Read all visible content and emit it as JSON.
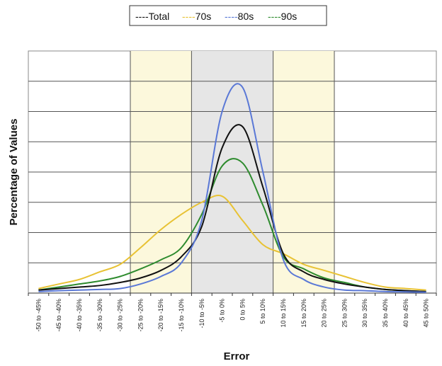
{
  "chart_data": {
    "type": "line",
    "title": "",
    "xlabel": "Error",
    "ylabel": "Percentage of Values",
    "categories": [
      "-50 to -45%",
      "-45 to -40%",
      "-40 to -35%",
      "-35 to -30%",
      "-30 to -25%",
      "-25 to -20%",
      "-20 to -15%",
      "-15 to -10%",
      "-10 to -5%",
      "-5 to 0%",
      "0 to 5%",
      "5 to 10%",
      "10 to 15%",
      "15 to 20%",
      "20 to 25%",
      "25 to 30%",
      "30 to 35%",
      "35 to 40%",
      "40 to 45%",
      "45 to 50%"
    ],
    "ylim": [
      0,
      8
    ],
    "y_gridlines": 8,
    "y_tick_labels_shown": false,
    "grid": true,
    "legend_position": "top",
    "shaded_bands": [
      {
        "from_category": "-25 to -20%",
        "to_category": "-15 to -10%",
        "color": "#fcf8dc"
      },
      {
        "from_category": "-10 to -5%",
        "to_category": "5 to 10%",
        "color": "#e6e6e6"
      },
      {
        "from_category": "10 to 15%",
        "to_category": "20 to 25%",
        "color": "#fcf8dc"
      }
    ],
    "series": [
      {
        "name": "Total",
        "color": "#111111",
        "values": [
          0.1,
          0.15,
          0.2,
          0.25,
          0.35,
          0.5,
          0.75,
          1.2,
          2.2,
          4.8,
          5.5,
          3.5,
          1.3,
          0.7,
          0.45,
          0.3,
          0.2,
          0.12,
          0.08,
          0.05
        ]
      },
      {
        "name": "70s",
        "color": "#e8c234",
        "values": [
          0.15,
          0.3,
          0.45,
          0.7,
          0.95,
          1.5,
          2.1,
          2.6,
          3.0,
          3.2,
          2.4,
          1.6,
          1.3,
          0.95,
          0.75,
          0.55,
          0.35,
          0.2,
          0.15,
          0.1
        ]
      },
      {
        "name": "80s",
        "color": "#5a78d6",
        "values": [
          0.05,
          0.08,
          0.1,
          0.12,
          0.15,
          0.3,
          0.55,
          1.0,
          2.4,
          6.0,
          6.8,
          4.0,
          1.1,
          0.45,
          0.2,
          0.1,
          0.08,
          0.05,
          0.04,
          0.03
        ]
      },
      {
        "name": "90s",
        "color": "#2e8b2e",
        "values": [
          0.1,
          0.2,
          0.3,
          0.4,
          0.55,
          0.8,
          1.1,
          1.5,
          2.6,
          4.2,
          4.3,
          2.9,
          1.2,
          0.8,
          0.5,
          0.35,
          0.2,
          0.12,
          0.08,
          0.05
        ]
      }
    ]
  },
  "legend": [
    {
      "dash": "----",
      "label": "Total",
      "color": "#111111"
    },
    {
      "dash": "----",
      "label": "70s",
      "color": "#e8c234"
    },
    {
      "dash": "----",
      "label": "80s",
      "color": "#5a78d6"
    },
    {
      "dash": "----",
      "label": "90s",
      "color": "#2e8b2e"
    }
  ]
}
